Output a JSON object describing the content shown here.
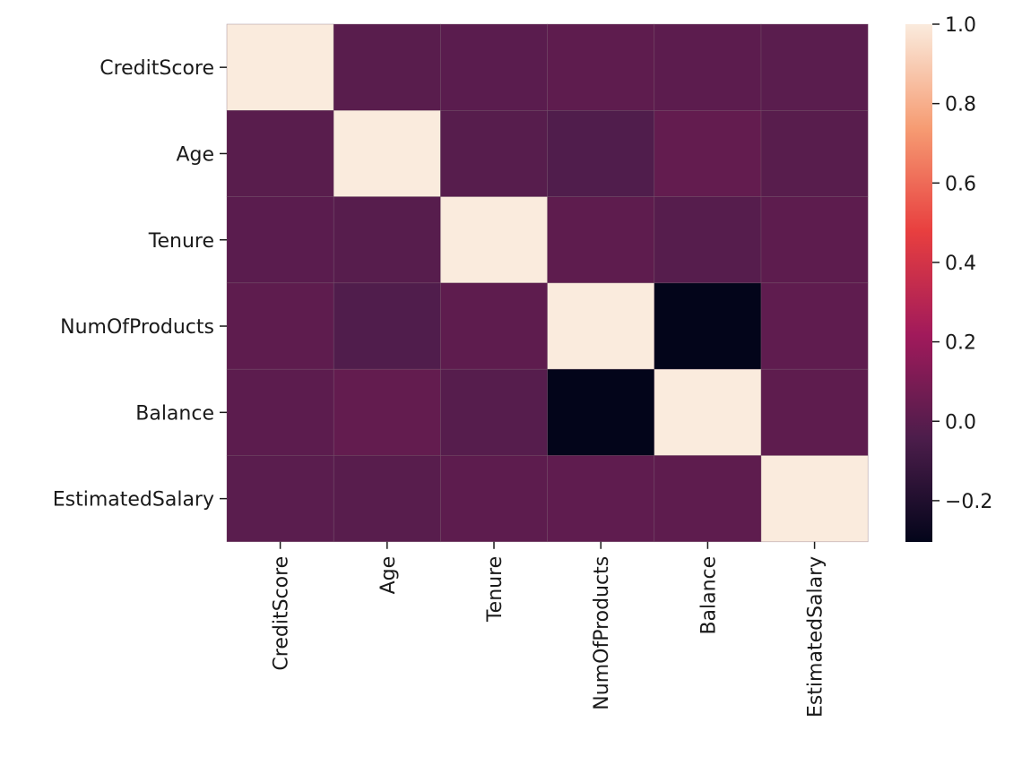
{
  "chart_data": {
    "type": "heatmap",
    "title": "",
    "xlabel": "",
    "ylabel": "",
    "row_labels": [
      "CreditScore",
      "Age",
      "Tenure",
      "NumOfProducts",
      "Balance",
      "EstimatedSalary"
    ],
    "col_labels": [
      "CreditScore",
      "Age",
      "Tenure",
      "NumOfProducts",
      "Balance",
      "EstimatedSalary"
    ],
    "values": [
      [
        1.0,
        -0.004,
        0.001,
        0.012,
        0.006,
        -0.001
      ],
      [
        -0.004,
        1.0,
        -0.01,
        -0.031,
        0.028,
        -0.007
      ],
      [
        0.001,
        -0.01,
        1.0,
        0.013,
        -0.012,
        0.008
      ],
      [
        0.012,
        -0.031,
        0.013,
        1.0,
        -0.304,
        0.014
      ],
      [
        0.006,
        0.028,
        -0.012,
        -0.304,
        1.0,
        0.013
      ],
      [
        -0.001,
        -0.007,
        0.008,
        0.014,
        0.013,
        1.0
      ]
    ],
    "colorbar": {
      "range": [
        -0.304,
        1.0
      ],
      "ticks": [
        1.0,
        0.8,
        0.6,
        0.4,
        0.2,
        0.0,
        -0.2
      ],
      "tick_labels": [
        "1.0",
        "0.8",
        "0.6",
        "0.4",
        "0.2",
        "0.0",
        "−0.2"
      ],
      "colormap": "rocket",
      "colormap_stops": [
        "#03051a",
        "#4c1d4b",
        "#a11a5b",
        "#e83f3f",
        "#f69c73",
        "#faebdd"
      ]
    },
    "grid": false,
    "cell_border_color": "#7a5c70"
  }
}
